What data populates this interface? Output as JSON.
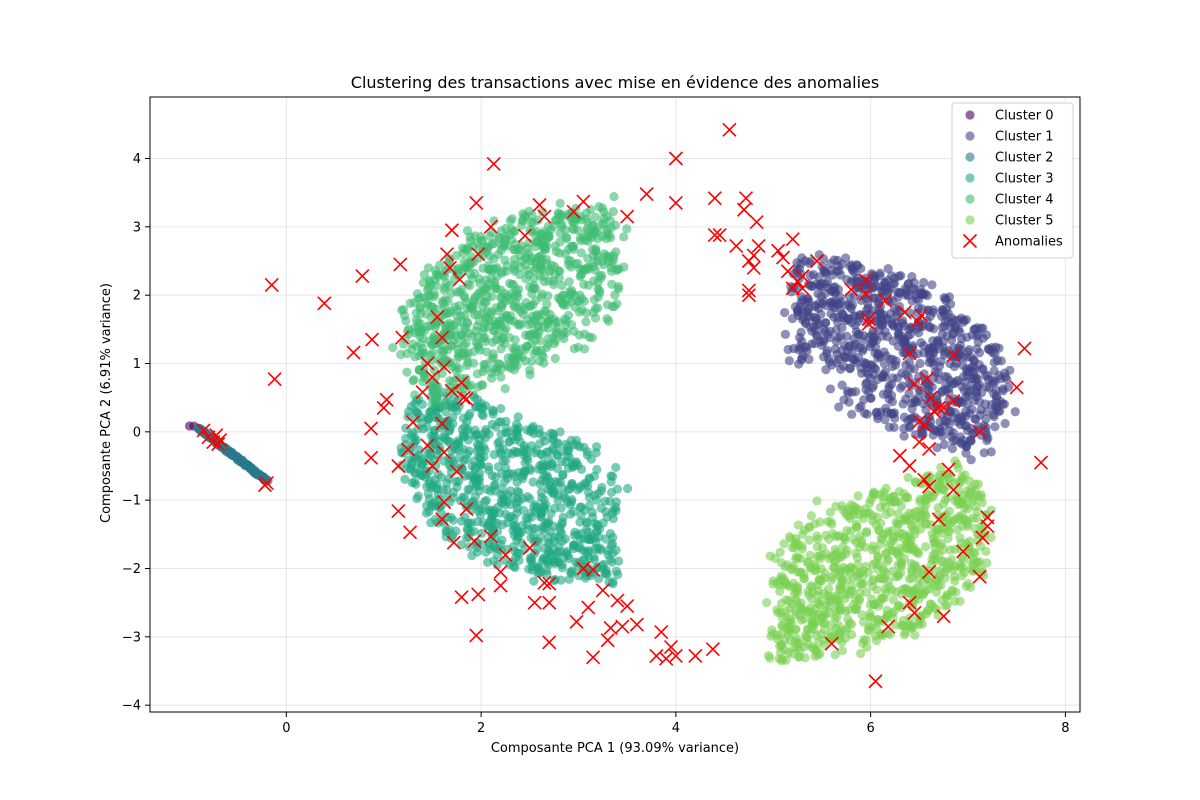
{
  "chart_data": {
    "type": "scatter",
    "title": "Clustering des transactions avec mise en évidence des anomalies",
    "xlabel": "Composante PCA 1 (93.09% variance)",
    "ylabel": "Composante PCA 2 (6.91% variance)",
    "xlim": [
      -1.4,
      8.15
    ],
    "ylim": [
      -4.1,
      4.9
    ],
    "xticks": [
      0,
      2,
      4,
      6,
      8
    ],
    "yticks": [
      -4,
      -3,
      -2,
      -1,
      0,
      1,
      2,
      3,
      4
    ],
    "grid": true,
    "legend_position": "top-right",
    "series": [
      {
        "name": "Cluster 0",
        "color": "#440154",
        "marker": "circle",
        "segment": {
          "from": [
            -0.98,
            0.1
          ],
          "to": [
            -0.95,
            0.08
          ]
        },
        "count": 2
      },
      {
        "name": "Cluster 1",
        "color": "#414487",
        "marker": "circle",
        "region": {
          "center": [
            5.2,
            0.6
          ],
          "angle_range_deg": [
            -30,
            90
          ],
          "radius": [
            0.4,
            2.7
          ]
        },
        "count": 850
      },
      {
        "name": "Cluster 2",
        "color": "#2a788e",
        "marker": "circle",
        "segment": {
          "from": [
            -0.9,
            0.05
          ],
          "to": [
            -0.2,
            -0.72
          ]
        },
        "count": 160
      },
      {
        "name": "Cluster 3",
        "color": "#22a884",
        "marker": "circle",
        "region": {
          "center": [
            3.4,
            -0.3
          ],
          "angle_range_deg": [
            150,
            270
          ],
          "radius": [
            0.2,
            2.7
          ]
        },
        "count": 850
      },
      {
        "name": "Cluster 4",
        "color": "#3fbc73",
        "marker": "circle",
        "region": {
          "center": [
            3.4,
            1.4
          ],
          "angle_range_deg": [
            90,
            210
          ],
          "radius": [
            0.2,
            2.7
          ]
        },
        "count": 850
      },
      {
        "name": "Cluster 5",
        "color": "#7ad151",
        "marker": "circle",
        "region": {
          "center": [
            5.0,
            -1.4
          ],
          "angle_range_deg": [
            270,
            390
          ],
          "radius": [
            0.2,
            2.7
          ]
        },
        "count": 850
      },
      {
        "name": "Anomalies",
        "color": "#ff0000",
        "marker": "x",
        "points": [
          [
            -0.15,
            2.15
          ],
          [
            -0.12,
            0.77
          ],
          [
            0.39,
            1.88
          ],
          [
            0.69,
            1.16
          ],
          [
            0.78,
            2.28
          ],
          [
            0.88,
            1.35
          ],
          [
            0.87,
            0.05
          ],
          [
            0.87,
            -0.38
          ],
          [
            1.0,
            0.35
          ],
          [
            1.03,
            0.47
          ],
          [
            1.17,
            2.45
          ],
          [
            1.19,
            1.38
          ],
          [
            1.15,
            -0.5
          ],
          [
            1.15,
            -1.16
          ],
          [
            1.27,
            -1.47
          ],
          [
            1.3,
            0.14
          ],
          [
            1.25,
            -0.26
          ],
          [
            1.4,
            0.58
          ],
          [
            1.45,
            1.0
          ],
          [
            1.5,
            0.8
          ],
          [
            1.45,
            -0.2
          ],
          [
            1.5,
            -0.5
          ],
          [
            1.55,
            1.68
          ],
          [
            1.6,
            1.38
          ],
          [
            1.62,
            0.95
          ],
          [
            1.6,
            0.12
          ],
          [
            1.62,
            -0.3
          ],
          [
            1.62,
            -1.03
          ],
          [
            1.6,
            -1.28
          ],
          [
            1.65,
            2.6
          ],
          [
            1.68,
            2.4
          ],
          [
            1.7,
            2.95
          ],
          [
            1.7,
            0.6
          ],
          [
            1.75,
            -0.58
          ],
          [
            1.72,
            -1.62
          ],
          [
            1.78,
            2.23
          ],
          [
            1.8,
            0.72
          ],
          [
            1.82,
            0.5
          ],
          [
            1.85,
            0.48
          ],
          [
            1.8,
            -2.42
          ],
          [
            1.85,
            -1.13
          ],
          [
            1.95,
            3.35
          ],
          [
            1.97,
            2.6
          ],
          [
            1.93,
            -1.6
          ],
          [
            1.97,
            -2.38
          ],
          [
            1.95,
            -2.98
          ],
          [
            2.1,
            3.0
          ],
          [
            2.13,
            3.92
          ],
          [
            2.1,
            -1.53
          ],
          [
            2.2,
            -2.05
          ],
          [
            2.2,
            -2.25
          ],
          [
            2.25,
            -1.8
          ],
          [
            2.45,
            2.87
          ],
          [
            2.5,
            -1.7
          ],
          [
            2.55,
            -2.5
          ],
          [
            2.6,
            3.32
          ],
          [
            2.65,
            3.15
          ],
          [
            2.65,
            -2.21
          ],
          [
            2.7,
            -2.22
          ],
          [
            2.7,
            -2.5
          ],
          [
            2.7,
            -3.08
          ],
          [
            2.95,
            3.22
          ],
          [
            2.98,
            -2.78
          ],
          [
            3.05,
            3.37
          ],
          [
            3.05,
            -2.0
          ],
          [
            3.1,
            -2.57
          ],
          [
            3.15,
            -2.02
          ],
          [
            3.15,
            -3.3
          ],
          [
            3.25,
            -2.32
          ],
          [
            3.3,
            -3.05
          ],
          [
            3.33,
            -2.87
          ],
          [
            3.4,
            -2.47
          ],
          [
            3.45,
            -2.85
          ],
          [
            3.5,
            3.15
          ],
          [
            3.5,
            -2.55
          ],
          [
            3.6,
            -2.82
          ],
          [
            3.7,
            3.48
          ],
          [
            3.8,
            -3.28
          ],
          [
            3.85,
            -2.93
          ],
          [
            3.9,
            -3.32
          ],
          [
            3.95,
            -3.15
          ],
          [
            4.0,
            4.0
          ],
          [
            4.0,
            3.35
          ],
          [
            4.0,
            -3.28
          ],
          [
            4.2,
            -3.28
          ],
          [
            4.38,
            -3.18
          ],
          [
            4.4,
            3.42
          ],
          [
            4.4,
            2.88
          ],
          [
            4.45,
            2.88
          ],
          [
            4.55,
            4.42
          ],
          [
            4.62,
            2.72
          ],
          [
            4.7,
            3.25
          ],
          [
            4.72,
            3.42
          ],
          [
            4.75,
            2.5
          ],
          [
            4.75,
            2.07
          ],
          [
            4.75,
            2.0
          ],
          [
            4.8,
            2.58
          ],
          [
            4.8,
            2.4
          ],
          [
            4.83,
            3.07
          ],
          [
            4.85,
            2.72
          ],
          [
            5.05,
            2.65
          ],
          [
            5.1,
            2.55
          ],
          [
            5.15,
            2.35
          ],
          [
            5.2,
            2.82
          ],
          [
            5.2,
            2.1
          ],
          [
            5.25,
            2.2
          ],
          [
            5.3,
            2.28
          ],
          [
            5.3,
            2.1
          ],
          [
            5.45,
            2.5
          ],
          [
            5.6,
            -3.1
          ],
          [
            5.8,
            2.08
          ],
          [
            5.95,
            2.22
          ],
          [
            5.95,
            2.02
          ],
          [
            5.98,
            1.65
          ],
          [
            5.98,
            1.58
          ],
          [
            6.05,
            -3.65
          ],
          [
            6.15,
            1.92
          ],
          [
            6.18,
            -2.85
          ],
          [
            6.3,
            -0.35
          ],
          [
            6.35,
            1.75
          ],
          [
            6.4,
            -2.5
          ],
          [
            6.45,
            -2.65
          ],
          [
            6.4,
            1.15
          ],
          [
            6.4,
            -0.5
          ],
          [
            6.45,
            0.7
          ],
          [
            6.48,
            1.62
          ],
          [
            6.5,
            0.15
          ],
          [
            6.52,
            1.7
          ],
          [
            6.5,
            -0.15
          ],
          [
            6.55,
            -0.7
          ],
          [
            6.55,
            0.1
          ],
          [
            6.58,
            0.78
          ],
          [
            6.6,
            -0.8
          ],
          [
            6.6,
            -0.25
          ],
          [
            6.6,
            -2.05
          ],
          [
            6.62,
            0.5
          ],
          [
            6.65,
            0.3
          ],
          [
            6.7,
            0.35
          ],
          [
            6.7,
            -1.28
          ],
          [
            6.75,
            0.35
          ],
          [
            6.75,
            -2.7
          ],
          [
            6.8,
            -0.55
          ],
          [
            6.85,
            1.12
          ],
          [
            6.85,
            0.45
          ],
          [
            6.85,
            -0.85
          ],
          [
            6.95,
            -1.75
          ],
          [
            7.12,
            0.0
          ],
          [
            7.12,
            -2.12
          ],
          [
            7.15,
            -1.55
          ],
          [
            7.2,
            -1.25
          ],
          [
            7.2,
            -1.38
          ],
          [
            7.5,
            0.65
          ],
          [
            7.58,
            1.22
          ],
          [
            7.75,
            -0.45
          ],
          [
            -0.2,
            -0.75
          ],
          [
            -0.22,
            -0.78
          ],
          [
            -0.72,
            -0.05
          ],
          [
            -0.75,
            -0.15
          ],
          [
            -0.85,
            0.02
          ],
          [
            -0.68,
            -0.12
          ],
          [
            -0.8,
            -0.08
          ],
          [
            -0.7,
            -0.18
          ]
        ]
      }
    ]
  }
}
